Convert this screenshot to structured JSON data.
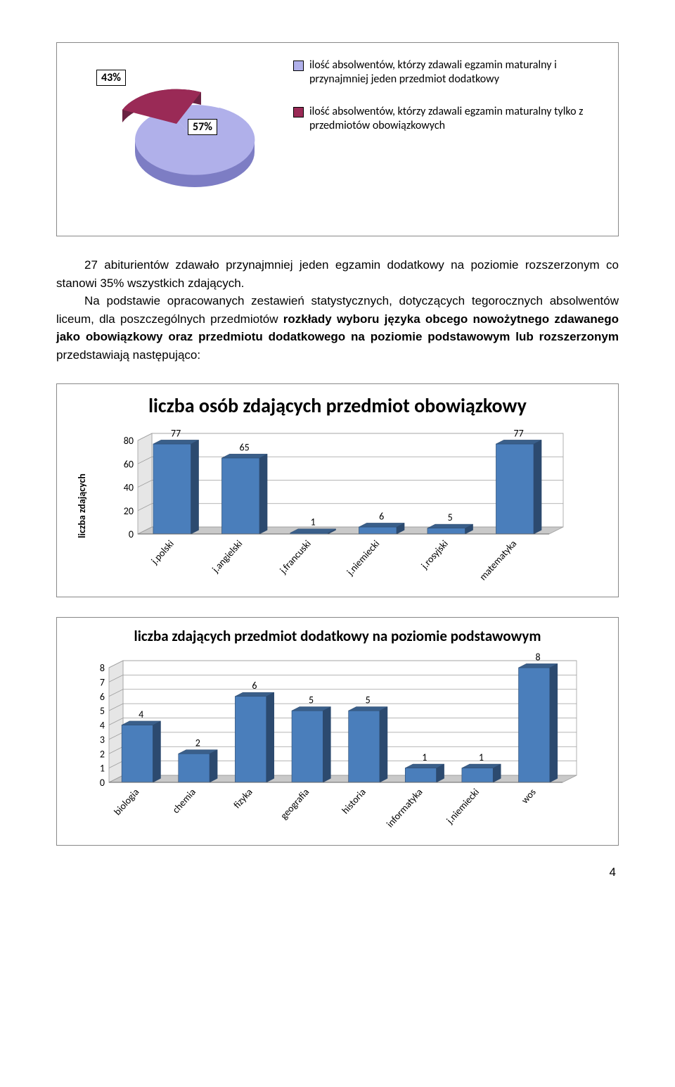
{
  "pie": {
    "slice1": {
      "label": "57%",
      "value": 57,
      "color_top": "#b0b0ea",
      "color_side": "#7d7dc4"
    },
    "slice2": {
      "label": "43%",
      "value": 43,
      "color_top": "#9a2a56",
      "color_side": "#6a2242"
    },
    "legend1": "ilość absolwentów, którzy zdawali egzamin maturalny i przynajmniej jeden przedmiot dodatkowy",
    "legend2": "ilość absolwentów, którzy zdawali egzamin maturalny tylko z przedmiotów obowiązkowych"
  },
  "paragraph": {
    "line1": "27 abiturientów zdawało przynajmniej jeden egzamin dodatkowy na poziomie rozszerzonym co stanowi 35% wszystkich zdających.",
    "line2_pre": "Na podstawie opracowanych zestawień statystycznych, dotyczących tegorocznych absolwentów liceum, dla poszczególnych przedmiotów ",
    "line2_b1": "rozkłady wyboru języka obcego nowożytnego zdawanego jako obowiązkowy oraz przedmiotu dodatkowego na poziomie podstawowym lub rozszerzonym",
    "line2_post": " przedstawiają następująco:"
  },
  "chart1": {
    "title": "liczba osób zdających przedmiot obowiązkowy",
    "ylabel": "liczba zdających",
    "categories": [
      "j.polski",
      "j.angielski",
      "j.francuski",
      "j.niemiecki",
      "j.rosyjski",
      "matematyka"
    ],
    "values": [
      77,
      65,
      1,
      6,
      5,
      77
    ],
    "ylim": [
      0,
      80
    ],
    "ytick_step": 20,
    "bar_fill": "#4a7ebb",
    "bar_fill_dark": "#3a5f8a",
    "bar_side": "#2c4a6f",
    "floor_fill": "#c9c9c9",
    "wall_fill": "#ffffff",
    "grid_stroke": "#9e9e9e",
    "label_fontsize": 14,
    "title_fontsize": 28
  },
  "chart2": {
    "title": "liczba zdających przedmiot dodatkowy na poziomie podstawowym",
    "categories": [
      "biologia",
      "chemia",
      "fizyka",
      "geografia",
      "historia",
      "informatyka",
      "j.niemiecki",
      "wos"
    ],
    "values": [
      4,
      2,
      6,
      5,
      5,
      1,
      1,
      8
    ],
    "ylim": [
      0,
      8
    ],
    "ytick_step": 1,
    "bar_fill": "#4a7ebb",
    "bar_fill_dark": "#3a5f8a",
    "bar_side": "#2c4a6f",
    "floor_fill": "#c9c9c9",
    "wall_fill": "#ffffff",
    "grid_stroke": "#9e9e9e",
    "label_fontsize": 14,
    "title_fontsize": 21
  },
  "page_number": "4"
}
